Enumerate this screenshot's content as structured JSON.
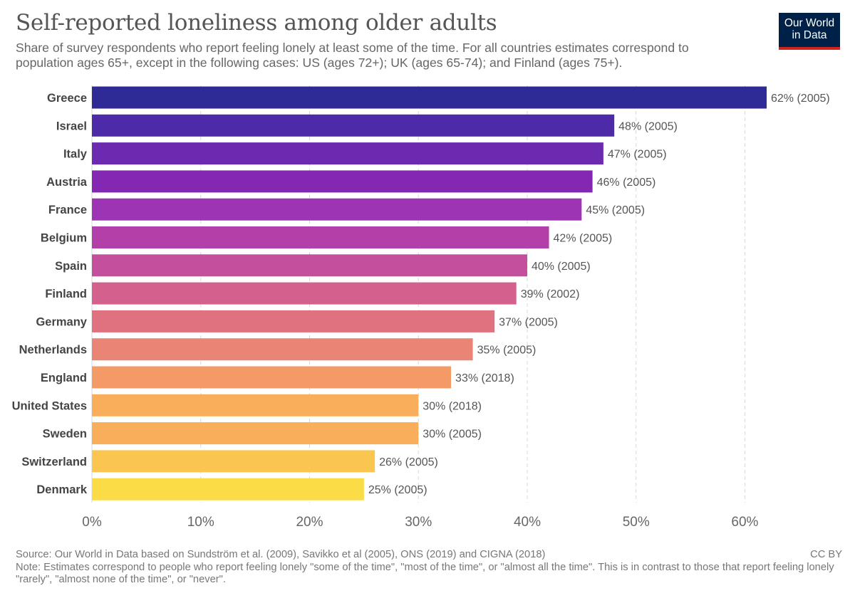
{
  "header": {
    "title": "Self-reported loneliness among older adults",
    "subtitle": "Share of survey respondents who report feeling lonely at least some of the time. For all countries estimates correspond to population ages 65+, except in the following cases: US (ages 72+); UK (ages 65-74); and Finland (ages 75+).",
    "logo_line1": "Our World",
    "logo_line2": "in Data"
  },
  "footer": {
    "source": "Source: Our World in Data based on Sundström et al. (2009), Savikko et al (2005), ONS (2019) and CIGNA (2018)",
    "license": "CC BY",
    "note": "Note: Estimates correspond to people who report feeling lonely \"some of the time\", \"most of the time\", or \"almost all the time\". This is in contrast to those that report feeling lonely \"rarely\", \"almost none of the time\", or \"never\"."
  },
  "colors": {
    "label_text": "#444444",
    "value_text": "#555555",
    "tick_text": "#666666",
    "grid": "#d9d9d9",
    "bars": [
      "#2e2a96",
      "#4d2aa8",
      "#6b2ab0",
      "#8428b4",
      "#9c34b4",
      "#b240a8",
      "#c44f9c",
      "#d4608d",
      "#e07280",
      "#ea8474",
      "#f49a66",
      "#f9ae5c",
      "#f9ae5c",
      "#fbc64f",
      "#fbdc46"
    ]
  },
  "chart_data": {
    "type": "bar",
    "orientation": "horizontal",
    "categories": [
      "Greece",
      "Israel",
      "Italy",
      "Austria",
      "France",
      "Belgium",
      "Spain",
      "Finland",
      "Germany",
      "Netherlands",
      "England",
      "United States",
      "Sweden",
      "Switzerland",
      "Denmark"
    ],
    "values": [
      62,
      48,
      47,
      46,
      45,
      42,
      40,
      39,
      37,
      35,
      33,
      30,
      30,
      26,
      25
    ],
    "years": [
      "2005",
      "2005",
      "2005",
      "2005",
      "2005",
      "2005",
      "2005",
      "2002",
      "2005",
      "2005",
      "2018",
      "2018",
      "2005",
      "2005",
      "2005"
    ],
    "data_labels": [
      "62% (2005)",
      "48% (2005)",
      "47% (2005)",
      "46% (2005)",
      "45% (2005)",
      "42% (2005)",
      "40% (2005)",
      "39% (2002)",
      "37% (2005)",
      "35% (2005)",
      "33% (2018)",
      "30% (2018)",
      "30% (2005)",
      "26% (2005)",
      "25% (2005)"
    ],
    "xlim": [
      0,
      62
    ],
    "ticks": [
      0,
      10,
      20,
      30,
      40,
      50,
      60
    ],
    "tick_labels": [
      "0%",
      "10%",
      "20%",
      "30%",
      "40%",
      "50%",
      "60%"
    ],
    "grid": true
  }
}
